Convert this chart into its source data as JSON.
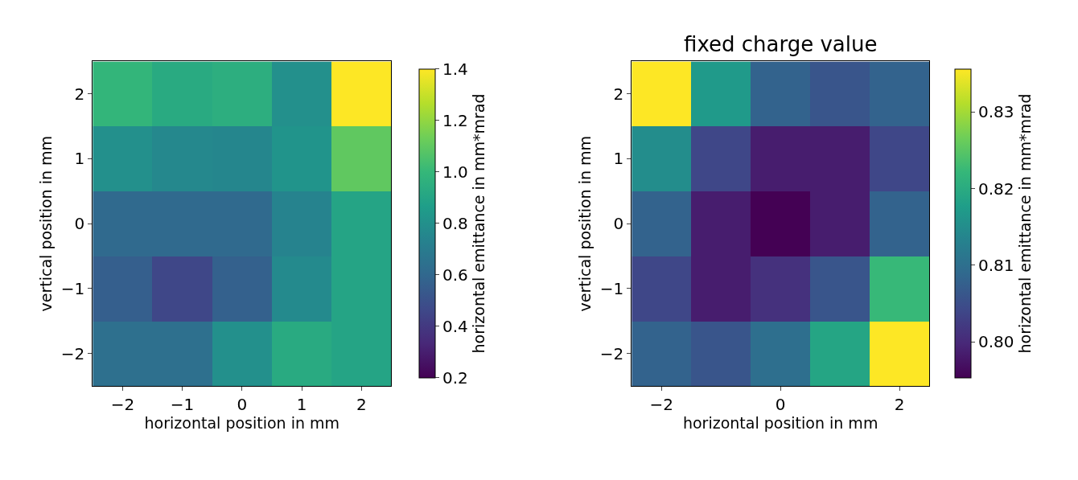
{
  "chart_data": [
    {
      "type": "heatmap",
      "xlabel": "horizontal position in mm",
      "ylabel": "vertical position in mm",
      "clabel": "horizontal emittance in mm*mrad",
      "categories": [
        "−2",
        "−1",
        "0",
        "1",
        "2"
      ],
      "y_categories": [
        "2",
        "1",
        "0",
        "−1",
        "−2"
      ],
      "cells": [
        [
          0.99,
          0.93,
          0.95,
          0.8,
          1.4
        ],
        [
          0.8,
          0.76,
          0.75,
          0.82,
          1.1
        ],
        [
          0.61,
          0.61,
          0.61,
          0.74,
          0.9
        ],
        [
          0.56,
          0.46,
          0.57,
          0.77,
          0.9
        ],
        [
          0.64,
          0.64,
          0.8,
          0.93,
          0.9
        ]
      ],
      "clim": [
        0.2,
        1.4
      ],
      "cticks": [
        {
          "value": 0.2,
          "label": "0.2"
        },
        {
          "value": 0.4,
          "label": "0.4"
        },
        {
          "value": 0.6,
          "label": "0.6"
        },
        {
          "value": 0.8,
          "label": "0.8"
        },
        {
          "value": 1.0,
          "label": "1.0"
        },
        {
          "value": 1.2,
          "label": "1.2"
        },
        {
          "value": 1.4,
          "label": "1.4"
        }
      ]
    },
    {
      "type": "heatmap",
      "title": "fixed charge value",
      "xlabel": "horizontal position in mm",
      "ylabel": "vertical position in mm",
      "clabel": "horizontal emittance in mm*mrad",
      "categories": [
        "−2",
        null,
        "0",
        null,
        "2"
      ],
      "y_categories": [
        "2",
        "1",
        "0",
        "−1",
        "−2"
      ],
      "cells": [
        [
          0.8356,
          0.817,
          0.808,
          0.806,
          0.808
        ],
        [
          0.815,
          0.804,
          0.7985,
          0.7985,
          0.804
        ],
        [
          0.808,
          0.7985,
          0.7953,
          0.7985,
          0.808
        ],
        [
          0.804,
          0.7985,
          0.801,
          0.806,
          0.8223
        ],
        [
          0.808,
          0.806,
          0.81,
          0.819,
          0.8356
        ]
      ],
      "clim": [
        0.7953,
        0.8356
      ],
      "cticks": [
        {
          "value": 0.8,
          "label": "0.80"
        },
        {
          "value": 0.81,
          "label": "0.81"
        },
        {
          "value": 0.82,
          "label": "0.82"
        },
        {
          "value": 0.83,
          "label": "0.83"
        }
      ]
    }
  ]
}
